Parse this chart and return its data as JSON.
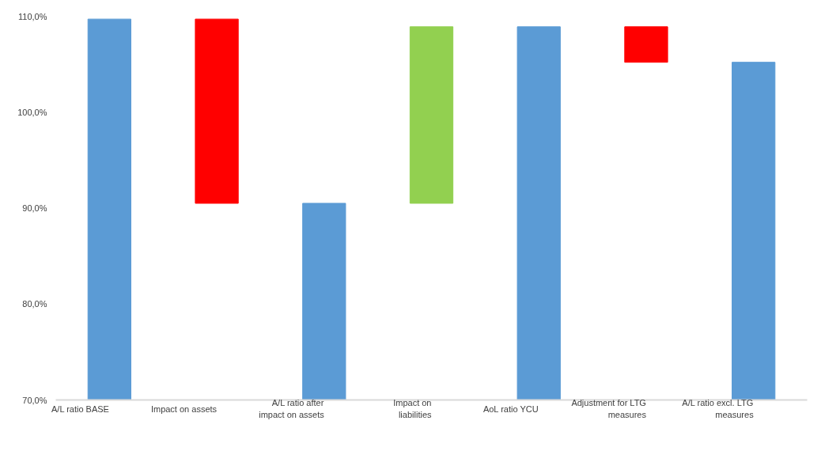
{
  "chart_data": {
    "type": "bar",
    "categories": [
      "A/L ratio BASE",
      "Impact on assets",
      "A/L ratio after impact on assets",
      "Impact on liabilities",
      "AoL ratio YCU",
      "Adjustment for LTG measures",
      "A/L ratio excl. LTG measures"
    ],
    "values": [
      109.7,
      -19.2,
      90.5,
      18.4,
      108.9,
      -3.7,
      105.2
    ],
    "base": [
      null,
      109.7,
      null,
      90.5,
      null,
      108.9,
      null
    ],
    "colors": [
      "#5b9bd5",
      "#ff0000",
      "#5b9bd5",
      "#92d050",
      "#5b9bd5",
      "#ff0000",
      "#5b9bd5"
    ],
    "ylim": [
      70,
      110
    ],
    "yticks": [
      {
        "value": 70,
        "label": "70,0%"
      },
      {
        "value": 80,
        "label": "80,0%"
      },
      {
        "value": 90,
        "label": "90,0%"
      },
      {
        "value": 100,
        "label": "100,0%"
      },
      {
        "value": 110,
        "label": "110,0%"
      }
    ],
    "grid": false
  }
}
